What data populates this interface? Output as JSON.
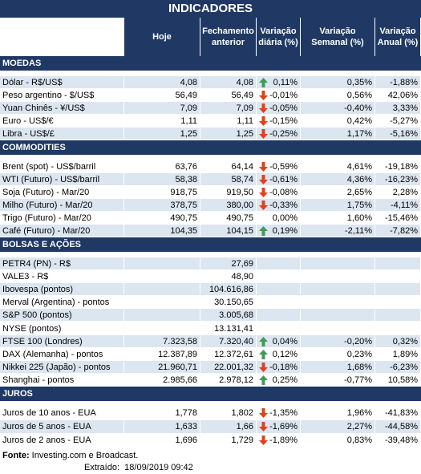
{
  "title": "INDICADORES",
  "columns": [
    null,
    "Hoje",
    "Fechamento anterior",
    "Variação diária (%)",
    "Variação Semanal (%)",
    "Variação Anual (%)"
  ],
  "sections": [
    {
      "name": "MOEDAS",
      "rows": [
        [
          "Dólar - R$/US$",
          "4,08",
          "4,08",
          "0,11%",
          "0,35%",
          "-1,88%"
        ],
        [
          "Peso argentino - $/US$",
          "56,49",
          "56,49",
          "-0,01%",
          "0,56%",
          "42,06%"
        ],
        [
          "Yuan Chinês - ¥/US$",
          "7,09",
          "7,09",
          "-0,05%",
          "-0,40%",
          "3,33%"
        ],
        [
          "Euro - US$/€",
          "1,11",
          "1,11",
          "-0,15%",
          "0,42%",
          "-5,27%"
        ],
        [
          "Libra - US$/£",
          "1,25",
          "1,25",
          "-0,25%",
          "1,17%",
          "-5,16%"
        ]
      ]
    },
    {
      "name": "COMMODITIES",
      "rows": [
        [
          "Brent (spot) - US$/barril",
          "63,76",
          "64,14",
          "-0,59%",
          "4,61%",
          "-19,18%"
        ],
        [
          "WTI (Futuro) - US$/barril",
          "58,38",
          "58,74",
          "-0,61%",
          "4,36%",
          "-16,23%"
        ],
        [
          "Soja (Futuro) - Mar/20",
          "918,75",
          "919,50",
          "-0,08%",
          "2,65%",
          "2,28%"
        ],
        [
          "Milho (Futuro) - Mar/20",
          "378,75",
          "380,00",
          "-0,33%",
          "1,75%",
          "-4,11%"
        ],
        [
          "Trigo (Futuro) - Mar/20",
          "490,75",
          "490,75",
          "0,00%",
          "1,60%",
          "-15,46%"
        ],
        [
          "Café (Futuro) - Mar/20",
          "104,35",
          "104,15",
          "0,19%",
          "-2,11%",
          "-7,82%"
        ]
      ]
    },
    {
      "name": "BOLSAS E AÇÕES",
      "rows": [
        [
          "PETR4 (PN) - R$",
          null,
          "27,69",
          null,
          null,
          null
        ],
        [
          "VALE3 - R$",
          null,
          "48,90",
          null,
          null,
          null
        ],
        [
          "Ibovespa (pontos)",
          null,
          "104.616,86",
          null,
          null,
          null
        ],
        [
          "Merval (Argentina) - pontos",
          null,
          "30.150,65",
          null,
          null,
          null
        ],
        [
          "S&P 500 (pontos)",
          null,
          "3.005,68",
          null,
          null,
          null
        ],
        [
          "NYSE (pontos)",
          null,
          "13.131,41",
          null,
          null,
          null
        ],
        [
          "FTSE 100 (Londres)",
          "7.323,58",
          "7.320,40",
          "0,04%",
          "-0,20%",
          "0,32%"
        ],
        [
          "DAX (Alemanha) - pontos",
          "12.387,89",
          "12.372,61",
          "0,12%",
          "0,23%",
          "1,89%"
        ],
        [
          "Nikkei 225 (Japão) - pontos",
          "21.960,71",
          "22.001,32",
          "-0,18%",
          "1,68%",
          "-6,23%"
        ],
        [
          "Shanghai - pontos",
          "2.985,66",
          "2.978,12",
          "0,25%",
          "-0,77%",
          "10,58%"
        ]
      ]
    },
    {
      "name": "JUROS",
      "rows": [
        [
          "Juros de 10 anos - EUA",
          "1,778",
          "1,802",
          "-1,35%",
          "1,96%",
          "-41,83%"
        ],
        [
          "Juros de 5 anos - EUA",
          "1,633",
          "1,66",
          "-1,69%",
          "2,27%",
          "-44,58%"
        ],
        [
          "Juros de 2 anos - EUA",
          "1,696",
          "1,729",
          "-1,89%",
          "0,83%",
          "-39,48%"
        ]
      ]
    }
  ],
  "footer": {
    "source_label": "Fonte:",
    "source": "Investing.com e Broadcast.",
    "extracted_label": "Extraído:",
    "extracted": "18/09/2019 09:42"
  }
}
